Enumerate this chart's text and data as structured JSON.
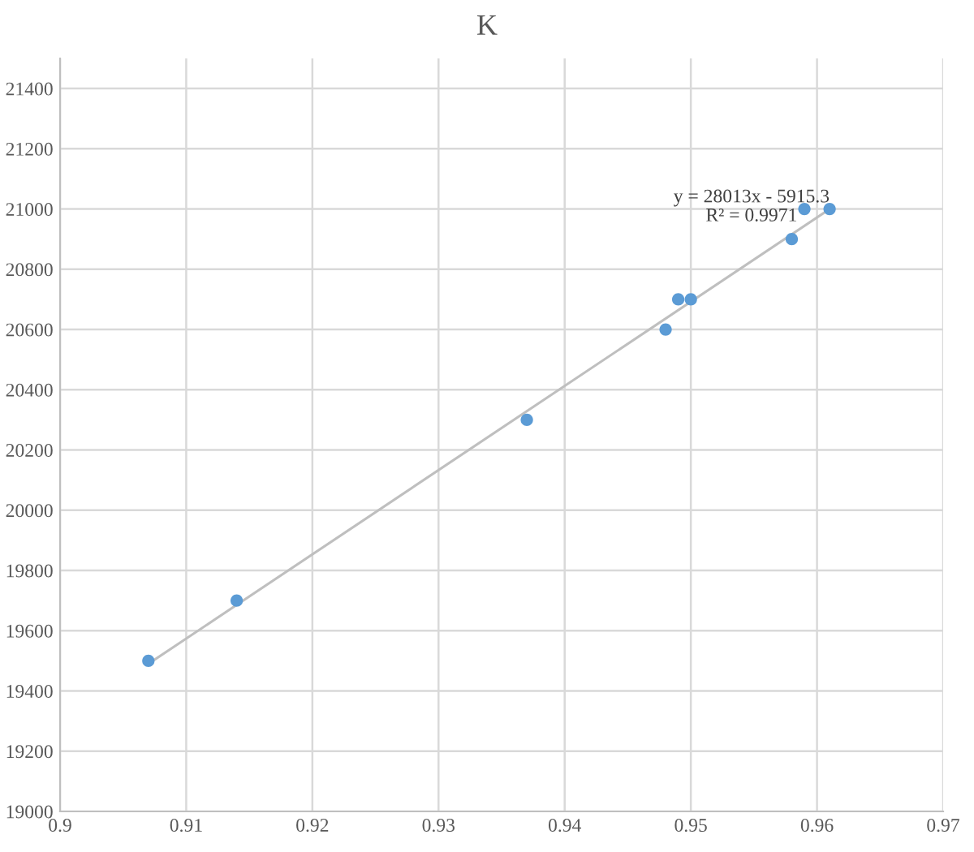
{
  "chart_data": {
    "type": "scatter",
    "title": "K",
    "series": [
      {
        "color": "#5b9bd5",
        "marker": "circle",
        "x": [
          0.907,
          0.914,
          0.937,
          0.948,
          0.949,
          0.95,
          0.958,
          0.959,
          0.961
        ],
        "values": [
          19500,
          19700,
          20300,
          20600,
          20700,
          20700,
          20900,
          21000,
          21000
        ]
      },
      {
        "type": "line",
        "color": "#bfbfbf",
        "line_style": "solid",
        "x": [
          0.907,
          0.961
        ],
        "values": [
          19490,
          21000
        ]
      }
    ],
    "xlim": [
      0.9,
      0.97
    ],
    "xticks": [
      0.9,
      0.91,
      0.92,
      0.93,
      0.94,
      0.95,
      0.96,
      0.97
    ],
    "ylim": [
      19000,
      21500
    ],
    "yticks": [
      19000,
      19200,
      19400,
      19600,
      19800,
      20000,
      20200,
      20400,
      20600,
      20800,
      21000,
      21200,
      21400
    ],
    "grid": true,
    "annotations": [
      "y = 28013x - 5915.3",
      "R² = 0.9971"
    ]
  }
}
